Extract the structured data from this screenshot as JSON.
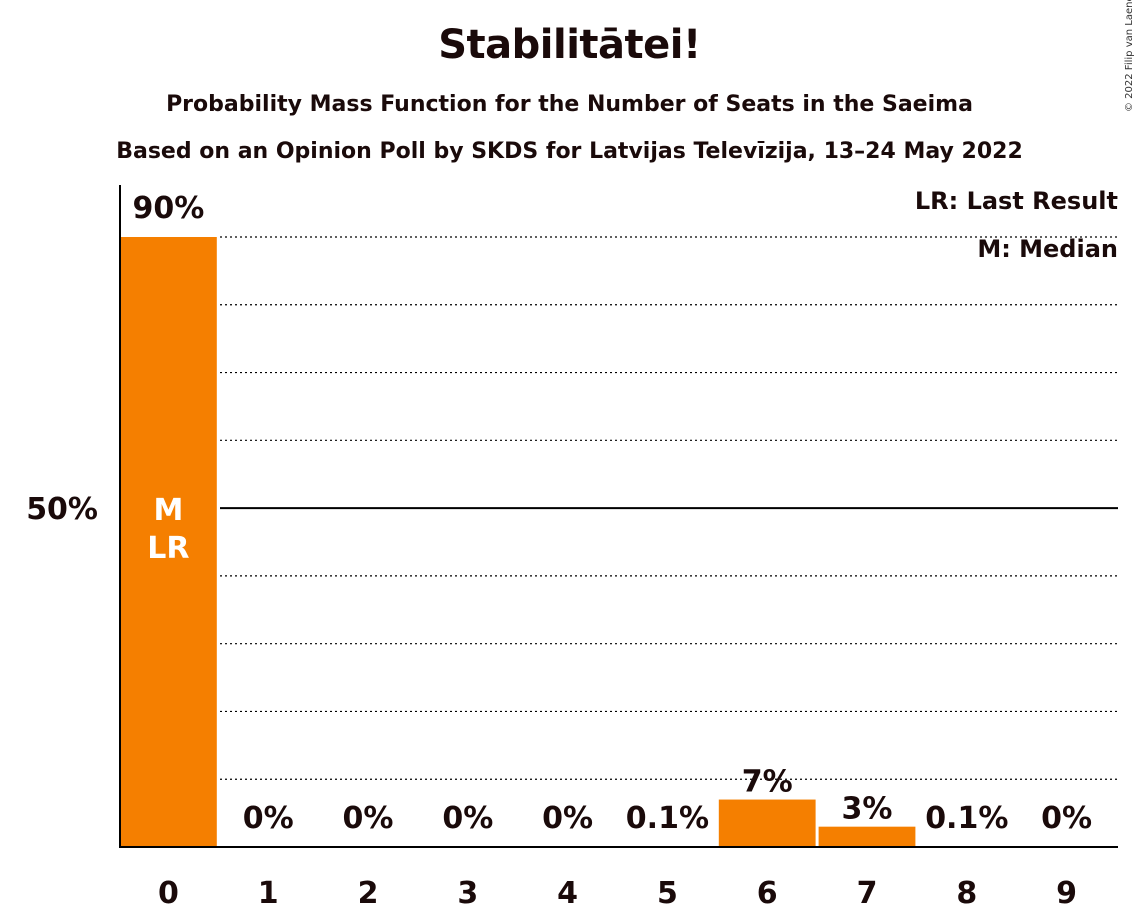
{
  "title": "Stabilitātei!",
  "subtitle": "Probability Mass Function for the Number of Seats in the Saeima",
  "subtitle2": "Based on an Opinion Poll by SKDS for Latvijas Televīzija, 13–24 May 2022",
  "copyright": "© 2022 Filip van Laenen",
  "legend": {
    "last_result": "LR: Last Result",
    "median": "M: Median"
  },
  "colors": {
    "bar": "#F57F00",
    "text": "#1a0a0a",
    "axis": "#000000",
    "bar_inner_text": "#ffffff"
  },
  "chart_data": {
    "type": "bar",
    "categories": [
      "0",
      "1",
      "2",
      "3",
      "4",
      "5",
      "6",
      "7",
      "8",
      "9"
    ],
    "values": [
      90,
      0,
      0,
      0,
      0,
      0.1,
      7,
      3,
      0.1,
      0
    ],
    "value_labels": [
      "90%",
      "0%",
      "0%",
      "0%",
      "0%",
      "0.1%",
      "7%",
      "3%",
      "0.1%",
      "0%"
    ],
    "ylim": [
      0,
      90
    ],
    "y_tick_label": "50%",
    "y_tick_value": 50,
    "grid": "dotted every 10%",
    "median_index": 0,
    "last_result_index": 0,
    "median_marker": "M",
    "last_result_marker": "LR"
  }
}
